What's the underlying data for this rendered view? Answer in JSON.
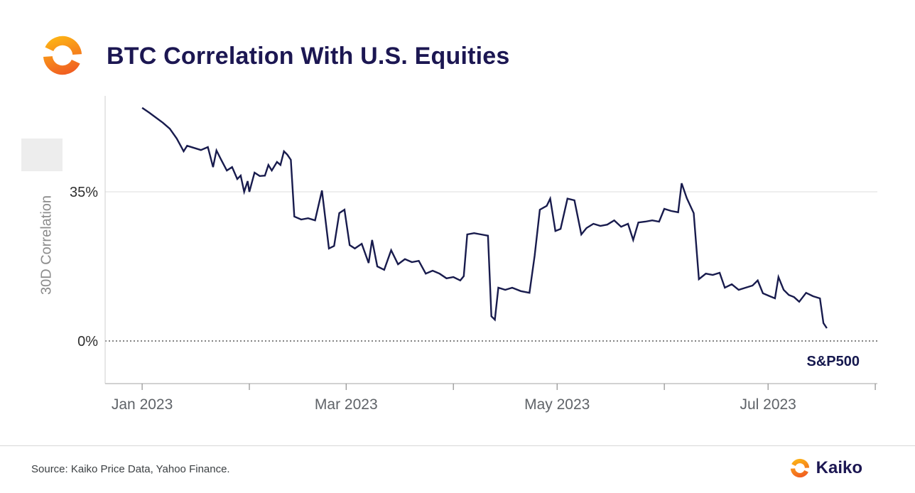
{
  "header": {
    "title": "BTC Correlation With U.S. Equities",
    "logo_icon": "kaiko-logo"
  },
  "footer": {
    "source": "Source: Kaiko Price Data, Yahoo Finance.",
    "brand_name": "Kaiko"
  },
  "colors": {
    "title_navy": "#1c1752",
    "line_navy": "#181b4d",
    "accent_orange_light": "#FDB515",
    "accent_orange_dark": "#F05A22"
  },
  "chart_data": {
    "type": "line",
    "title": "BTC Correlation With U.S. Equities",
    "xlabel": "",
    "ylabel": "30D Correlation",
    "x_unit": "days since Jan 1 2023",
    "xlim_days": [
      -10.7,
      212.6
    ],
    "ylim": [
      -10,
      57.5
    ],
    "grid": {
      "y35": "solid",
      "y0": "dotted"
    },
    "legend_position": "bottom-right-annotation",
    "yticks": [
      {
        "value": 35,
        "label": "35%"
      },
      {
        "value": 0,
        "label": "0%"
      }
    ],
    "xticks": [
      {
        "day": 0,
        "label": "Jan 2023"
      },
      {
        "day": 31,
        "label": ""
      },
      {
        "day": 59,
        "label": "Mar 2023"
      },
      {
        "day": 90,
        "label": ""
      },
      {
        "day": 120,
        "label": "May 2023"
      },
      {
        "day": 151,
        "label": ""
      },
      {
        "day": 181,
        "label": "Jul 2023"
      },
      {
        "day": 212,
        "label": ""
      }
    ],
    "series": [
      {
        "name": "S&P500",
        "color": "#181b4d",
        "points": [
          [
            0,
            54.7
          ],
          [
            2,
            53.6
          ],
          [
            4,
            52.4
          ],
          [
            6,
            51.2
          ],
          [
            8,
            49.8
          ],
          [
            10,
            47.5
          ],
          [
            12,
            44.5
          ],
          [
            13,
            45.8
          ],
          [
            15,
            45.3
          ],
          [
            17,
            44.8
          ],
          [
            19,
            45.5
          ],
          [
            20.5,
            40.8
          ],
          [
            21.5,
            44.7
          ],
          [
            23,
            42.3
          ],
          [
            24.5,
            40.0
          ],
          [
            26,
            40.8
          ],
          [
            27.5,
            38.0
          ],
          [
            28.5,
            38.8
          ],
          [
            29.5,
            35.0
          ],
          [
            30.5,
            37.5
          ],
          [
            31,
            35.0
          ],
          [
            32.5,
            39.5
          ],
          [
            34,
            38.7
          ],
          [
            35.5,
            38.8
          ],
          [
            36.5,
            41.3
          ],
          [
            37.5,
            40.0
          ],
          [
            39,
            42.0
          ],
          [
            40,
            41.3
          ],
          [
            41,
            44.5
          ],
          [
            42,
            43.7
          ],
          [
            43,
            42.5
          ],
          [
            44,
            29.2
          ],
          [
            46,
            28.5
          ],
          [
            48,
            28.8
          ],
          [
            50,
            28.3
          ],
          [
            52,
            35.3
          ],
          [
            54,
            21.7
          ],
          [
            55.5,
            22.3
          ],
          [
            57,
            30.0
          ],
          [
            58.5,
            30.8
          ],
          [
            60,
            22.5
          ],
          [
            61.5,
            21.7
          ],
          [
            63.5,
            22.8
          ],
          [
            65.5,
            18.3
          ],
          [
            66.5,
            23.7
          ],
          [
            68,
            17.5
          ],
          [
            70,
            16.7
          ],
          [
            72,
            21.3
          ],
          [
            74,
            18.0
          ],
          [
            76,
            19.2
          ],
          [
            78,
            18.5
          ],
          [
            80,
            18.8
          ],
          [
            82,
            15.8
          ],
          [
            84,
            16.5
          ],
          [
            86,
            15.8
          ],
          [
            88,
            14.7
          ],
          [
            90,
            15.0
          ],
          [
            92,
            14.2
          ],
          [
            93,
            15.2
          ],
          [
            94,
            25.0
          ],
          [
            96,
            25.3
          ],
          [
            98,
            25.0
          ],
          [
            100,
            24.7
          ],
          [
            101,
            5.8
          ],
          [
            102,
            5.0
          ],
          [
            103,
            12.5
          ],
          [
            105,
            12.0
          ],
          [
            107,
            12.5
          ],
          [
            109.5,
            11.7
          ],
          [
            112,
            11.3
          ],
          [
            113.5,
            20.0
          ],
          [
            115,
            30.8
          ],
          [
            117,
            31.7
          ],
          [
            118,
            33.4
          ],
          [
            119.5,
            25.8
          ],
          [
            121,
            26.3
          ],
          [
            123,
            33.4
          ],
          [
            125,
            33.0
          ],
          [
            127,
            25.0
          ],
          [
            128.5,
            26.5
          ],
          [
            130.5,
            27.5
          ],
          [
            132.5,
            27.0
          ],
          [
            134.5,
            27.3
          ],
          [
            136.5,
            28.3
          ],
          [
            138.5,
            26.8
          ],
          [
            140.5,
            27.5
          ],
          [
            142,
            23.7
          ],
          [
            143.5,
            27.8
          ],
          [
            145.5,
            28.0
          ],
          [
            147.5,
            28.3
          ],
          [
            149.5,
            28.0
          ],
          [
            151,
            31.0
          ],
          [
            153,
            30.5
          ],
          [
            155,
            30.2
          ],
          [
            156,
            37.0
          ],
          [
            157.5,
            33.5
          ],
          [
            159.5,
            30.0
          ],
          [
            161,
            14.5
          ],
          [
            163,
            15.8
          ],
          [
            165,
            15.5
          ],
          [
            167,
            16.0
          ],
          [
            168.5,
            12.5
          ],
          [
            170.5,
            13.3
          ],
          [
            172.5,
            12.0
          ],
          [
            174.5,
            12.5
          ],
          [
            176.5,
            13.0
          ],
          [
            178,
            14.2
          ],
          [
            179.5,
            11.2
          ],
          [
            181.5,
            10.5
          ],
          [
            183,
            10.0
          ],
          [
            184,
            15.0
          ],
          [
            185.5,
            12.0
          ],
          [
            187,
            10.8
          ],
          [
            188.5,
            10.3
          ],
          [
            190,
            9.2
          ],
          [
            192,
            11.3
          ],
          [
            194,
            10.5
          ],
          [
            196,
            10.0
          ],
          [
            197,
            4.2
          ],
          [
            198,
            3.0
          ]
        ]
      }
    ]
  }
}
